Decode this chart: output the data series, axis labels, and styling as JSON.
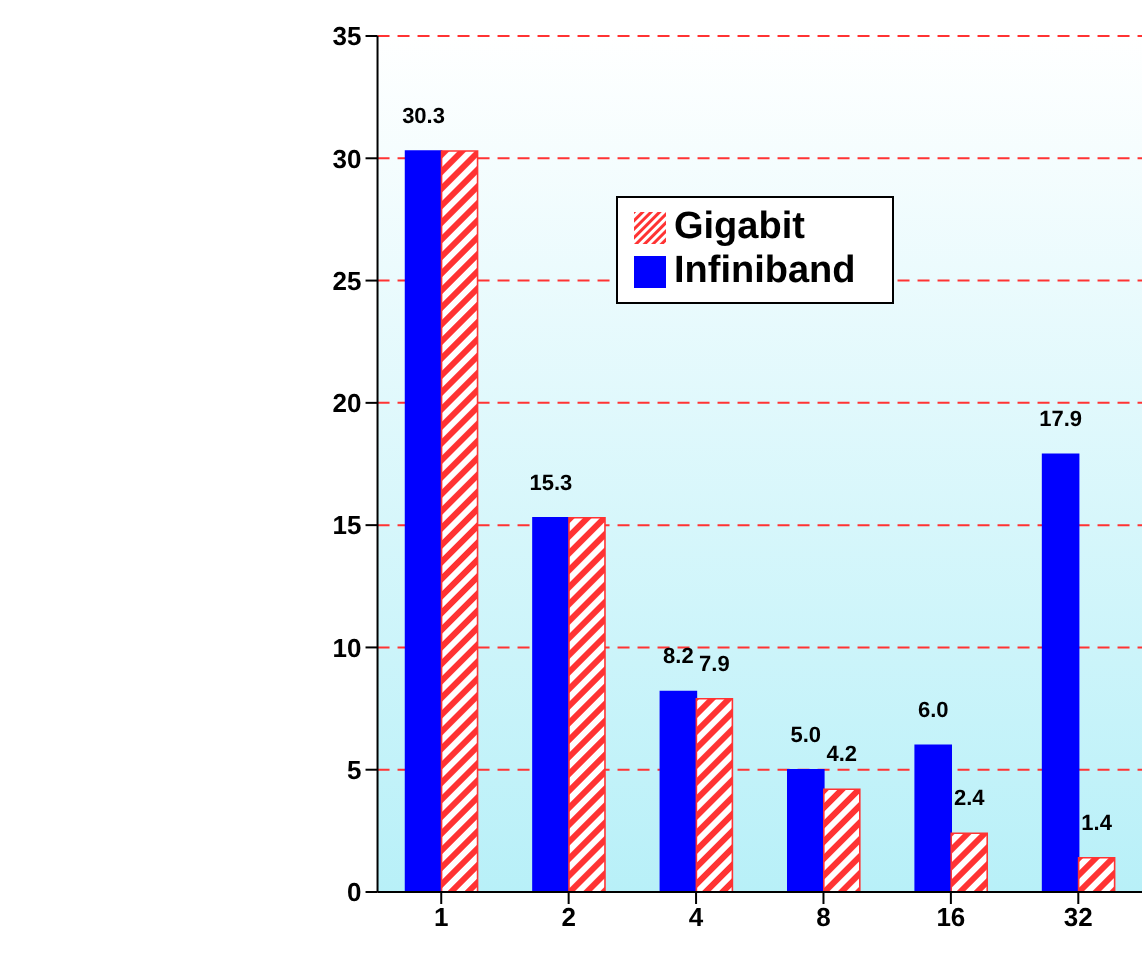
{
  "chart_data": {
    "type": "bar",
    "categories": [
      "1",
      "2",
      "4",
      "8",
      "16",
      "32"
    ],
    "series": [
      {
        "name": "Infiniband",
        "color": "#0000ff",
        "values": [
          30.3,
          15.3,
          8.2,
          5.0,
          6.0,
          17.9
        ],
        "value_labels": [
          "30.3",
          "15.3",
          "8.2",
          "5.0",
          "6.0",
          "17.9"
        ]
      },
      {
        "name": "Gigabit",
        "color": "#ff3333",
        "values": [
          30.3,
          15.3,
          7.9,
          4.2,
          2.4,
          1.4
        ],
        "value_labels": [
          null,
          null,
          "7.9",
          "4.2",
          "2.4",
          "1.4"
        ]
      }
    ],
    "ylim": [
      0,
      35
    ],
    "yticks": [
      0,
      5,
      10,
      15,
      20,
      25,
      30,
      35
    ],
    "grid": "y",
    "legend": "top right"
  }
}
